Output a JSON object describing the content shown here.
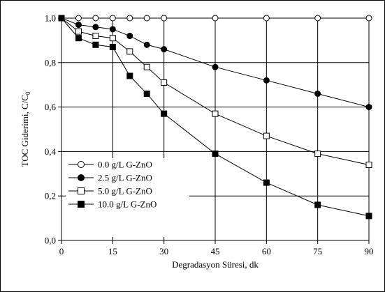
{
  "chart_data": {
    "type": "line",
    "xlabel": "Degradasyon Süresi, dk",
    "ylabel_main": "TOC Giderimi,  C/C",
    "ylabel_sub": "0",
    "xlim": [
      0,
      90
    ],
    "ylim": [
      0,
      1.0
    ],
    "x_ticks": [
      0,
      15,
      30,
      45,
      60,
      75,
      90
    ],
    "x_tick_labels": [
      "0",
      "15",
      "30",
      "45",
      "60",
      "75",
      "90"
    ],
    "y_ticks": [
      0,
      0.2,
      0.4,
      0.6,
      0.8,
      1.0
    ],
    "y_tick_labels": [
      "0,0",
      "0,2",
      "0,4",
      "0,6",
      "0,8",
      "1,0"
    ],
    "grid": true,
    "legend_position": "bottom-left",
    "series": [
      {
        "name": "0.0 g/L  G-ZnO",
        "marker": "circle-open",
        "x": [
          0,
          5,
          10,
          15,
          20,
          25,
          30,
          45,
          60,
          75,
          90
        ],
        "values": [
          1.0,
          1.0,
          1.0,
          1.0,
          1.0,
          1.0,
          1.0,
          1.0,
          1.0,
          1.0,
          1.0
        ]
      },
      {
        "name": "2.5 g/L  G-ZnO",
        "marker": "circle-filled",
        "x": [
          0,
          5,
          10,
          15,
          20,
          25,
          30,
          45,
          60,
          75,
          90
        ],
        "values": [
          1.0,
          0.97,
          0.96,
          0.95,
          0.92,
          0.88,
          0.86,
          0.78,
          0.72,
          0.66,
          0.6
        ]
      },
      {
        "name": "5.0 g/L  G-ZnO",
        "marker": "square-open",
        "x": [
          0,
          5,
          10,
          15,
          20,
          25,
          30,
          45,
          60,
          75,
          90
        ],
        "values": [
          1.0,
          0.94,
          0.92,
          0.91,
          0.85,
          0.78,
          0.71,
          0.57,
          0.47,
          0.39,
          0.34
        ]
      },
      {
        "name": "10.0 g/L  G-ZnO",
        "marker": "square-filled",
        "x": [
          0,
          5,
          10,
          15,
          20,
          25,
          30,
          45,
          60,
          75,
          90
        ],
        "values": [
          1.0,
          0.91,
          0.88,
          0.87,
          0.74,
          0.66,
          0.57,
          0.39,
          0.26,
          0.16,
          0.11
        ]
      }
    ]
  }
}
